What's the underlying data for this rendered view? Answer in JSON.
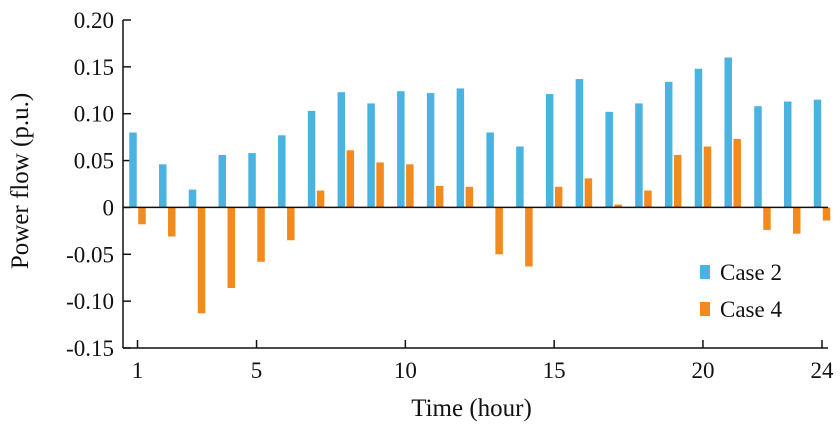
{
  "chart_data": {
    "type": "bar",
    "xlabel": "Time (hour)",
    "ylabel": "Power flow (p.u.)",
    "ylim": [
      -0.15,
      0.2
    ],
    "yticks": [
      0.2,
      0.15,
      0.1,
      0.05,
      0,
      -0.05,
      -0.1,
      -0.15
    ],
    "ytick_labels": [
      "0.20",
      "0.15",
      "0.10",
      "0.05",
      "0",
      "-0.05",
      "-0.10",
      "-0.15"
    ],
    "xticks": [
      1,
      5,
      10,
      15,
      20,
      24
    ],
    "xtick_labels": [
      "1",
      "5",
      "10",
      "15",
      "20",
      "24"
    ],
    "categories": [
      1,
      2,
      3,
      4,
      5,
      6,
      7,
      8,
      9,
      10,
      11,
      12,
      13,
      14,
      15,
      16,
      17,
      18,
      19,
      20,
      21,
      22,
      23,
      24
    ],
    "legend_position": "bottom-right",
    "grid": false,
    "series": [
      {
        "name": "Case 2",
        "color": "#4bb3e0",
        "values": [
          0.08,
          0.046,
          0.019,
          0.056,
          0.058,
          0.077,
          0.103,
          0.123,
          0.111,
          0.124,
          0.122,
          0.127,
          0.08,
          0.065,
          0.121,
          0.137,
          0.102,
          0.111,
          0.134,
          0.148,
          0.16,
          0.108,
          0.113,
          0.115
        ]
      },
      {
        "name": "Case 4",
        "color": "#f28a1e",
        "values": [
          -0.018,
          -0.031,
          -0.113,
          -0.086,
          -0.058,
          -0.035,
          0.018,
          0.061,
          0.048,
          0.046,
          0.023,
          0.022,
          -0.05,
          -0.063,
          0.022,
          0.031,
          0.003,
          0.018,
          0.056,
          0.065,
          0.073,
          -0.024,
          -0.028,
          -0.014
        ]
      }
    ]
  }
}
